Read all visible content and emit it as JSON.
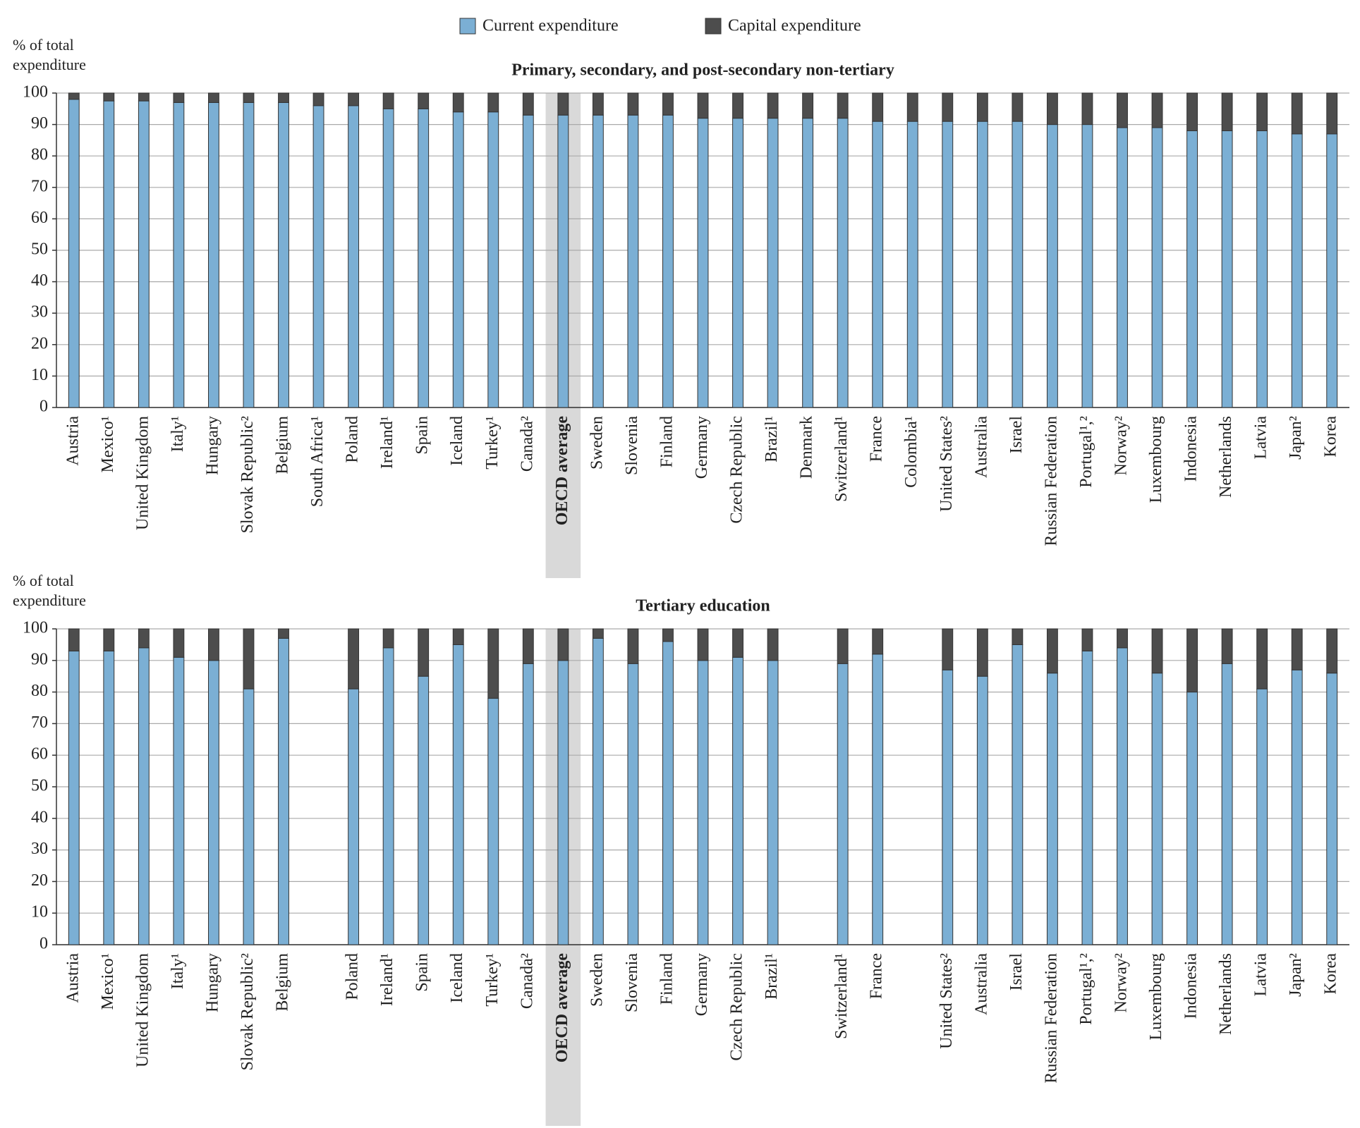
{
  "chart_data": [
    {
      "type": "stacked_bar",
      "title": "Primary, secondary, and post-secondary non-tertiary",
      "ylabel": "% of total expenditure",
      "categories": [
        "Austria",
        "Mexico¹",
        "United Kingdom",
        "Italy¹",
        "Hungary",
        "Slovak Republic²",
        "Belgium",
        "South Africa¹",
        "Poland",
        "Ireland¹",
        "Spain",
        "Iceland",
        "Turkey¹",
        "Canada²",
        "OECD average",
        "Sweden",
        "Slovenia",
        "Finland",
        "Germany",
        "Czech Republic",
        "Brazil¹",
        "Denmark",
        "Switzerland¹",
        "France",
        "Colombia¹",
        "United States²",
        "Australia",
        "Israel",
        "Russian Federation",
        "Portugal¹,²",
        "Norway²",
        "Luxembourg",
        "Indonesia",
        "Netherlands",
        "Latvia",
        "Japan²",
        "Korea"
      ],
      "series": [
        {
          "name": "Current expenditure",
          "color": "#7bafd4",
          "values": [
            98,
            97.5,
            97.5,
            97,
            97,
            97,
            97,
            96,
            96,
            95,
            95,
            94,
            94,
            93,
            93,
            93,
            93,
            93,
            92,
            92,
            92,
            92,
            92,
            91,
            91,
            91,
            91,
            91,
            90,
            90,
            89,
            89,
            88,
            88,
            88,
            87,
            87
          ]
        },
        {
          "name": "Capital expenditure",
          "color": "#4d4d4d",
          "values": [
            2,
            2.5,
            2.5,
            3,
            3,
            3,
            3,
            4,
            4,
            5,
            5,
            6,
            6,
            7,
            7,
            7,
            7,
            7,
            8,
            8,
            8,
            8,
            8,
            9,
            9,
            9,
            9,
            9,
            10,
            10,
            11,
            11,
            12,
            12,
            12,
            13,
            13
          ]
        }
      ],
      "highlight": 14,
      "ylim": [
        0,
        100
      ],
      "yticks": [
        0,
        10,
        20,
        30,
        40,
        50,
        60,
        70,
        80,
        90,
        100
      ],
      "grid": true
    },
    {
      "type": "stacked_bar",
      "title": "Tertiary education",
      "ylabel": "% of total expenditure",
      "categories": [
        "Austria",
        "Mexico¹",
        "United Kingdom",
        "Italy¹",
        "Hungary",
        "Slovak Republic²",
        "Belgium",
        null,
        "Poland",
        "Ireland¹",
        "Spain",
        "Iceland",
        "Turkey¹",
        "Canada²",
        "OECD average",
        "Sweden",
        "Slovenia",
        "Finland",
        "Germany",
        "Czech Republic",
        "Brazil¹",
        null,
        "Switzerland¹",
        "France",
        null,
        "United States²",
        "Australia",
        "Israel",
        "Russian Federation",
        "Portugal¹,²",
        "Norway²",
        "Luxembourg",
        "Indonesia",
        "Netherlands",
        "Latvia",
        "Japan²",
        "Korea"
      ],
      "series": [
        {
          "color": "#7bafd4",
          "values": [
            93,
            93,
            94,
            91,
            90,
            81,
            97,
            null,
            81,
            94,
            85,
            95,
            78,
            89,
            90,
            97,
            89,
            96,
            90,
            91,
            90,
            null,
            89,
            92,
            null,
            87,
            85,
            95,
            86,
            93,
            94,
            86,
            80,
            89,
            81,
            87,
            86
          ]
        },
        {
          "color": "#4d4d4d",
          "values": [
            7,
            7,
            6,
            9,
            10,
            19,
            3,
            null,
            19,
            6,
            15,
            5,
            22,
            11,
            10,
            3,
            11,
            4,
            10,
            9,
            10,
            null,
            11,
            8,
            null,
            13,
            15,
            5,
            14,
            7,
            6,
            14,
            20,
            11,
            19,
            13,
            14
          ]
        }
      ],
      "highlight": 14,
      "ylim": [
        0,
        100
      ],
      "yticks": [
        0,
        10,
        20,
        30,
        40,
        50,
        60,
        70,
        80,
        90,
        100
      ],
      "grid": true
    }
  ]
}
